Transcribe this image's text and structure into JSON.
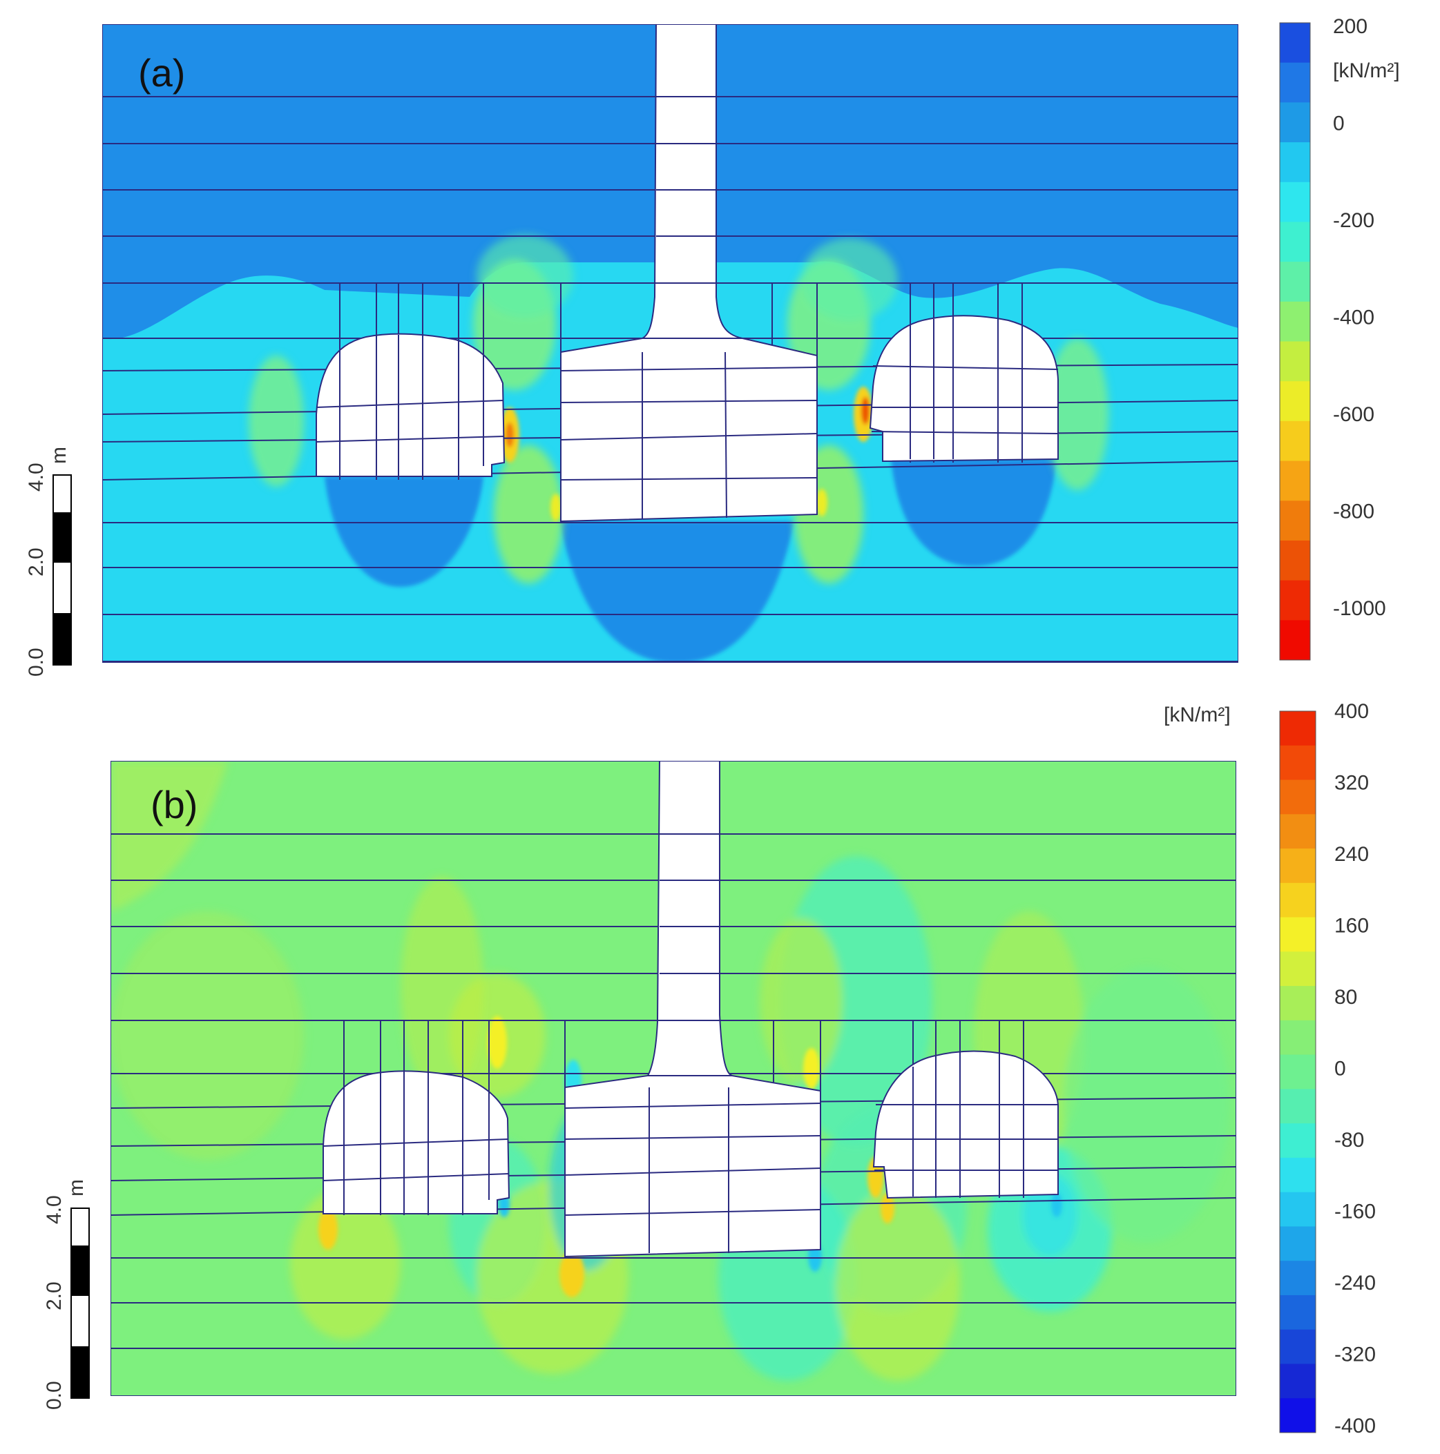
{
  "panels": [
    {
      "id": "a",
      "label": "(a)",
      "unit": "[kN/m²]",
      "colorbar": {
        "colors_top_to_bottom": [
          "#1a4fe0",
          "#1f78e6",
          "#1e9ae6",
          "#22c8f0",
          "#2ee6ee",
          "#3ef0d0",
          "#5ef0a8",
          "#8ef070",
          "#c4ee40",
          "#ecec28",
          "#f6cc1c",
          "#f6a414",
          "#f07c0c",
          "#ec5206",
          "#ee2a04",
          "#f00a00"
        ],
        "tick_labels": [
          "200",
          "0",
          "-200",
          "-400",
          "-600",
          "-800",
          "-1000"
        ]
      }
    },
    {
      "id": "b",
      "label": "(b)",
      "unit": "[kN/m²]",
      "colorbar": {
        "colors_top_to_bottom": [
          "#ee2a04",
          "#f24a08",
          "#f26c0c",
          "#f28e12",
          "#f6b018",
          "#f6d21e",
          "#f4f028",
          "#d2f03c",
          "#a8ee58",
          "#86ee76",
          "#6ef090",
          "#56eeb0",
          "#3eeed2",
          "#2ee0ee",
          "#24c6f0",
          "#1ea6ea",
          "#1c86e4",
          "#1a66de",
          "#1846d8",
          "#1628d4",
          "#1010e8"
        ],
        "tick_labels": [
          "400",
          "320",
          "240",
          "160",
          "80",
          "0",
          "-80",
          "-160",
          "-240",
          "-320",
          "-400"
        ]
      }
    }
  ],
  "scale_bar": {
    "unit": "m",
    "tick_labels": [
      "4.0",
      "2.0",
      "0.0"
    ]
  }
}
